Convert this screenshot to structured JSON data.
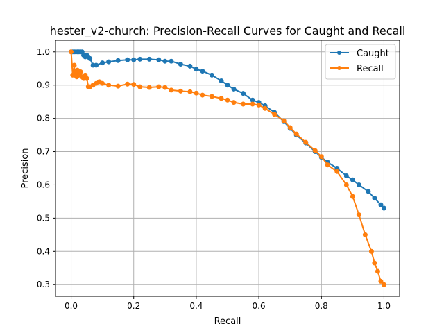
{
  "chart_data": {
    "type": "line",
    "title": "hester_v2-church: Precision-Recall Curves for Caught and Recall",
    "xlabel": "Recall",
    "ylabel": "Precision",
    "xlim": [
      -0.05,
      1.05
    ],
    "ylim": [
      0.265,
      1.035
    ],
    "xticks": [
      0.0,
      0.2,
      0.4,
      0.6,
      0.8,
      1.0
    ],
    "xtick_labels": [
      "0.0",
      "0.2",
      "0.4",
      "0.6",
      "0.8",
      "1.0"
    ],
    "yticks": [
      0.3,
      0.4,
      0.5,
      0.6,
      0.7,
      0.8,
      0.9,
      1.0
    ],
    "ytick_labels": [
      "0.3",
      "0.4",
      "0.5",
      "0.6",
      "0.7",
      "0.8",
      "0.9",
      "1.0"
    ],
    "grid": true,
    "legend_position": "top-right",
    "series": [
      {
        "name": "Caught",
        "color": "#1f77b4",
        "marker": "circle",
        "x": [
          0.0,
          0.005,
          0.01,
          0.015,
          0.02,
          0.025,
          0.03,
          0.035,
          0.04,
          0.045,
          0.05,
          0.055,
          0.06,
          0.07,
          0.08,
          0.1,
          0.12,
          0.15,
          0.18,
          0.2,
          0.22,
          0.25,
          0.28,
          0.3,
          0.32,
          0.35,
          0.38,
          0.4,
          0.42,
          0.45,
          0.48,
          0.5,
          0.52,
          0.55,
          0.58,
          0.6,
          0.62,
          0.65,
          0.68,
          0.7,
          0.72,
          0.75,
          0.78,
          0.8,
          0.82,
          0.85,
          0.88,
          0.9,
          0.92,
          0.95,
          0.97,
          0.99,
          1.0
        ],
        "y": [
          1.0,
          1.0,
          1.0,
          1.0,
          1.0,
          1.0,
          1.0,
          1.0,
          0.99,
          0.985,
          0.99,
          0.985,
          0.98,
          0.96,
          0.96,
          0.967,
          0.97,
          0.974,
          0.976,
          0.976,
          0.978,
          0.978,
          0.976,
          0.972,
          0.972,
          0.963,
          0.957,
          0.948,
          0.942,
          0.93,
          0.913,
          0.9,
          0.888,
          0.875,
          0.855,
          0.848,
          0.838,
          0.818,
          0.79,
          0.77,
          0.75,
          0.726,
          0.7,
          0.683,
          0.668,
          0.65,
          0.627,
          0.615,
          0.6,
          0.58,
          0.56,
          0.54,
          0.53
        ]
      },
      {
        "name": "Recall",
        "color": "#ff7f0e",
        "marker": "circle",
        "x": [
          0.0,
          0.005,
          0.01,
          0.012,
          0.015,
          0.018,
          0.02,
          0.025,
          0.03,
          0.035,
          0.04,
          0.045,
          0.05,
          0.055,
          0.06,
          0.07,
          0.08,
          0.09,
          0.1,
          0.12,
          0.15,
          0.18,
          0.2,
          0.22,
          0.25,
          0.28,
          0.3,
          0.32,
          0.35,
          0.38,
          0.4,
          0.42,
          0.45,
          0.48,
          0.5,
          0.52,
          0.55,
          0.58,
          0.6,
          0.62,
          0.65,
          0.68,
          0.7,
          0.72,
          0.75,
          0.78,
          0.8,
          0.82,
          0.85,
          0.88,
          0.9,
          0.92,
          0.94,
          0.96,
          0.97,
          0.98,
          0.99,
          1.0
        ],
        "y": [
          1.0,
          0.93,
          0.96,
          0.93,
          0.94,
          0.925,
          0.945,
          0.93,
          0.94,
          0.925,
          0.92,
          0.93,
          0.92,
          0.895,
          0.895,
          0.9,
          0.905,
          0.91,
          0.905,
          0.9,
          0.897,
          0.903,
          0.902,
          0.895,
          0.893,
          0.895,
          0.893,
          0.885,
          0.882,
          0.88,
          0.876,
          0.87,
          0.866,
          0.86,
          0.855,
          0.848,
          0.843,
          0.843,
          0.84,
          0.83,
          0.812,
          0.793,
          0.772,
          0.753,
          0.728,
          0.703,
          0.685,
          0.66,
          0.64,
          0.6,
          0.565,
          0.51,
          0.45,
          0.4,
          0.365,
          0.34,
          0.31,
          0.3
        ]
      }
    ]
  }
}
